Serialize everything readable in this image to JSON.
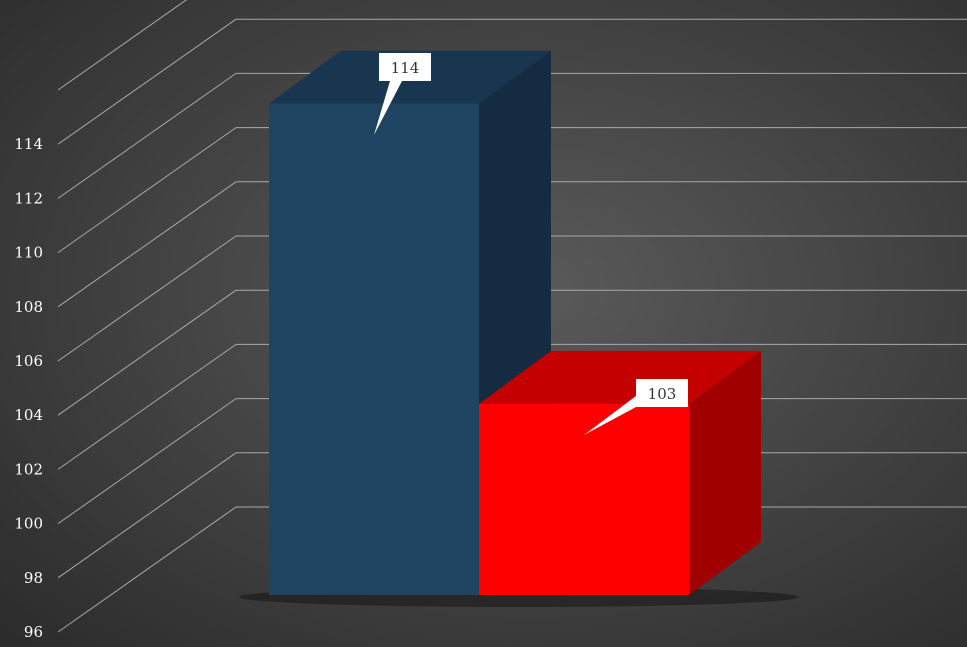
{
  "chart_data": {
    "type": "bar",
    "three_d": true,
    "categories": [
      "",
      ""
    ],
    "values": [
      114,
      103
    ],
    "ylim": [
      96,
      116
    ],
    "y_ticks": [
      96,
      98,
      100,
      102,
      104,
      106,
      108,
      110,
      112,
      114
    ],
    "grid": true,
    "legend": "none",
    "title": "",
    "xlabel": "",
    "ylabel": "",
    "data_labels": [
      "114",
      "103"
    ],
    "colors": {
      "bar_front": [
        "#1f4461",
        "#ff0000"
      ],
      "bar_top": [
        "#183650",
        "#c40000"
      ],
      "bar_side": [
        "#142b42",
        "#a00000"
      ],
      "grid": "#a8a8a8",
      "tick_text": "#ffffff",
      "callout_bg": "#ffffff",
      "callout_text": "#333333"
    }
  }
}
